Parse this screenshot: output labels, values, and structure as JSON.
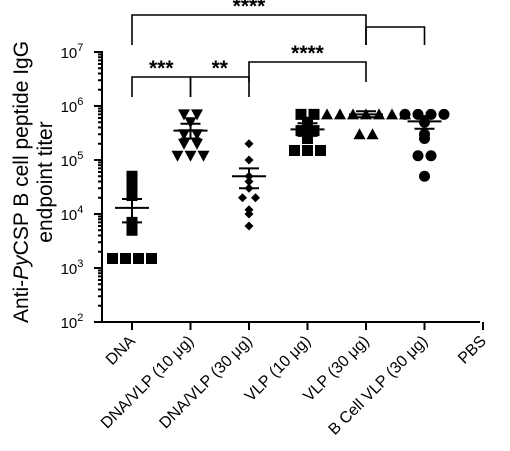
{
  "chart_data": {
    "type": "scatter",
    "scale": "log10",
    "ylabel_prefix": "Anti-",
    "ylabel_italic": "Py",
    "ylabel_suffix": "CSP B cell peptide IgG",
    "ylabel_line2": "endpoint titer",
    "yticks": [
      {
        "exp": 2,
        "label": "10",
        "sup": "2"
      },
      {
        "exp": 3,
        "label": "10",
        "sup": "3"
      },
      {
        "exp": 4,
        "label": "10",
        "sup": "4"
      },
      {
        "exp": 5,
        "label": "10",
        "sup": "5"
      },
      {
        "exp": 6,
        "label": "10",
        "sup": "6"
      },
      {
        "exp": 7,
        "label": "10",
        "sup": "7"
      }
    ],
    "ylim": [
      100,
      10000000
    ],
    "groups": [
      {
        "label": "DNA",
        "marker": "square",
        "mean": 13000,
        "sem_low": 7000,
        "sem_high": 19000,
        "values": [
          50000,
          35000,
          22000,
          7000,
          5000,
          1500,
          1500,
          1500,
          1500
        ]
      },
      {
        "label": "DNA/VLP (10 μg)",
        "marker": "triangle-down",
        "mean": 350000,
        "sem_low": 250000,
        "sem_high": 470000,
        "values": [
          700000,
          700000,
          500000,
          300000,
          300000,
          200000,
          200000,
          120000,
          120000,
          120000
        ]
      },
      {
        "label": "DNA/VLP (30 μg)",
        "marker": "diamond",
        "mean": 50000,
        "sem_low": 30000,
        "sem_high": 70000,
        "values": [
          200000,
          100000,
          50000,
          40000,
          30000,
          20000,
          20000,
          12000,
          10000,
          6000
        ]
      },
      {
        "label": "VLP (10 μg)",
        "marker": "square",
        "mean": 370000,
        "sem_low": 280000,
        "sem_high": 480000,
        "values": [
          700000,
          700000,
          500000,
          350000,
          350000,
          250000,
          150000,
          150000,
          150000
        ]
      },
      {
        "label": "VLP (30 μg)",
        "marker": "triangle-up",
        "mean": 700000,
        "sem_low": 620000,
        "sem_high": 800000,
        "values": [
          700000,
          700000,
          700000,
          700000,
          700000,
          700000,
          700000,
          300000,
          300000
        ]
      },
      {
        "label": "B Cell VLP (30 μg)",
        "marker": "circle",
        "mean": 520000,
        "sem_low": 380000,
        "sem_high": 650000,
        "values": [
          700000,
          700000,
          700000,
          700000,
          500000,
          300000,
          250000,
          120000,
          120000,
          50000
        ]
      },
      {
        "label": "PBS",
        "marker": "none",
        "values": []
      }
    ],
    "comparisons": [
      {
        "from": 0,
        "to": 4,
        "label": "****"
      },
      {
        "from": 4,
        "to": 5,
        "label": ""
      },
      {
        "from": 0,
        "to": 1,
        "label": "***"
      },
      {
        "from": 1,
        "to": 2,
        "label": "**"
      },
      {
        "from": 2,
        "to": 4,
        "label": "****"
      }
    ]
  }
}
